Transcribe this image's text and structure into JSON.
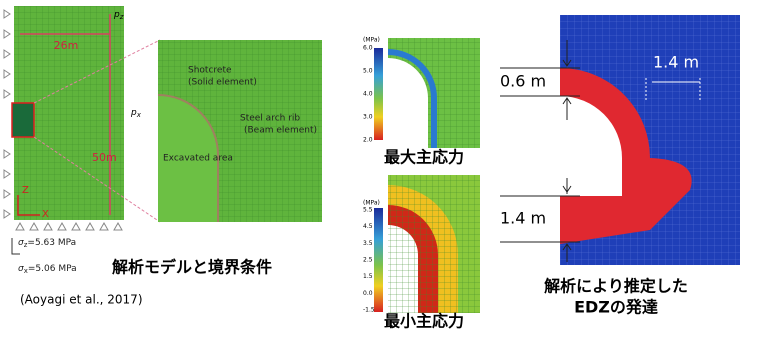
{
  "left_model": {
    "width": "26m",
    "height": "50m",
    "pz": {
      "symbol": "p",
      "sub": "z"
    },
    "px": {
      "symbol": "p",
      "sub": "x"
    },
    "axis_z": "Z",
    "axis_x": "X",
    "sigma_z": {
      "symbol": "σ",
      "sub": "z",
      "value": "=5.63 MPa"
    },
    "sigma_x": {
      "symbol": "σ",
      "sub": "x",
      "value": "=5.06 MPa"
    },
    "caption": "解析モデルと境界条件",
    "citation": "(Aoyagi et al., 2017)"
  },
  "zoom": {
    "shotcrete": "Shotcrete",
    "shotcrete_type": "(Solid element)",
    "rib": "Steel arch rib",
    "rib_type": "(Beam element)",
    "excavated": "Excavated area"
  },
  "max_stress": {
    "unit": "(MPa)",
    "ticks": [
      "6.0",
      "5.0",
      "4.0",
      "3.0",
      "2.0"
    ],
    "caption": "最大主応力"
  },
  "min_stress": {
    "unit": "(MPa)",
    "ticks": [
      "5.5",
      "4.5",
      "3.5",
      "2.5",
      "1.5",
      "0.0",
      "-1.5"
    ],
    "caption": "最小主応力"
  },
  "edz": {
    "top_thickness": "0.6 m",
    "width": "1.4 m",
    "bottom_thickness": "1.4 m",
    "caption_line1": "解析により推定した",
    "caption_line2": "EDZの発達"
  }
}
